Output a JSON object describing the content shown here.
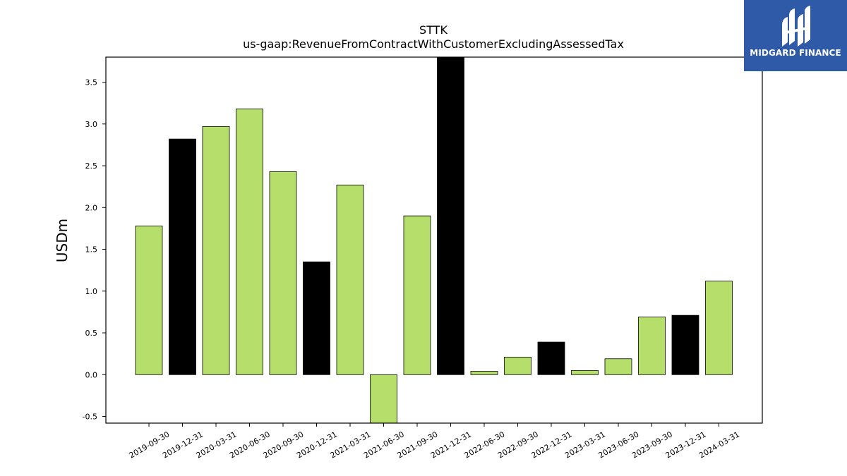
{
  "chart_data": {
    "type": "bar",
    "title": "STTK",
    "subtitle": "us-gaap:RevenueFromContractWithCustomerExcludingAssessedTax",
    "ylabel": "USDm",
    "xlabel": "",
    "ylim": [
      -0.58,
      3.8
    ],
    "yticks": [
      "-0.5",
      "0.0",
      "0.5",
      "1.0",
      "1.5",
      "2.0",
      "2.5",
      "3.0",
      "3.5"
    ],
    "grid": false,
    "categories": [
      "2019-09-30",
      "2019-12-31",
      "2020-03-31",
      "2020-06-30",
      "2020-09-30",
      "2020-12-31",
      "2021-03-31",
      "2021-06-30",
      "2021-09-30",
      "2021-12-31",
      "2022-06-30",
      "2022-09-30",
      "2022-12-31",
      "2023-03-31",
      "2023-06-30",
      "2023-09-30",
      "2023-12-31",
      "2024-03-31"
    ],
    "values": [
      1.78,
      2.82,
      2.97,
      3.18,
      2.43,
      1.35,
      2.27,
      -0.58,
      1.9,
      3.8,
      0.04,
      0.21,
      0.39,
      0.05,
      0.19,
      0.69,
      0.71,
      1.12
    ],
    "bar_colors": [
      "#b5de6a",
      "#000000",
      "#b5de6a",
      "#b5de6a",
      "#b5de6a",
      "#000000",
      "#b5de6a",
      "#b5de6a",
      "#b5de6a",
      "#000000",
      "#b5de6a",
      "#b5de6a",
      "#000000",
      "#b5de6a",
      "#b5de6a",
      "#b5de6a",
      "#000000",
      "#b5de6a"
    ]
  },
  "logo": {
    "text": "MIDGARD FINANCE",
    "background": "#2f5aa8"
  }
}
